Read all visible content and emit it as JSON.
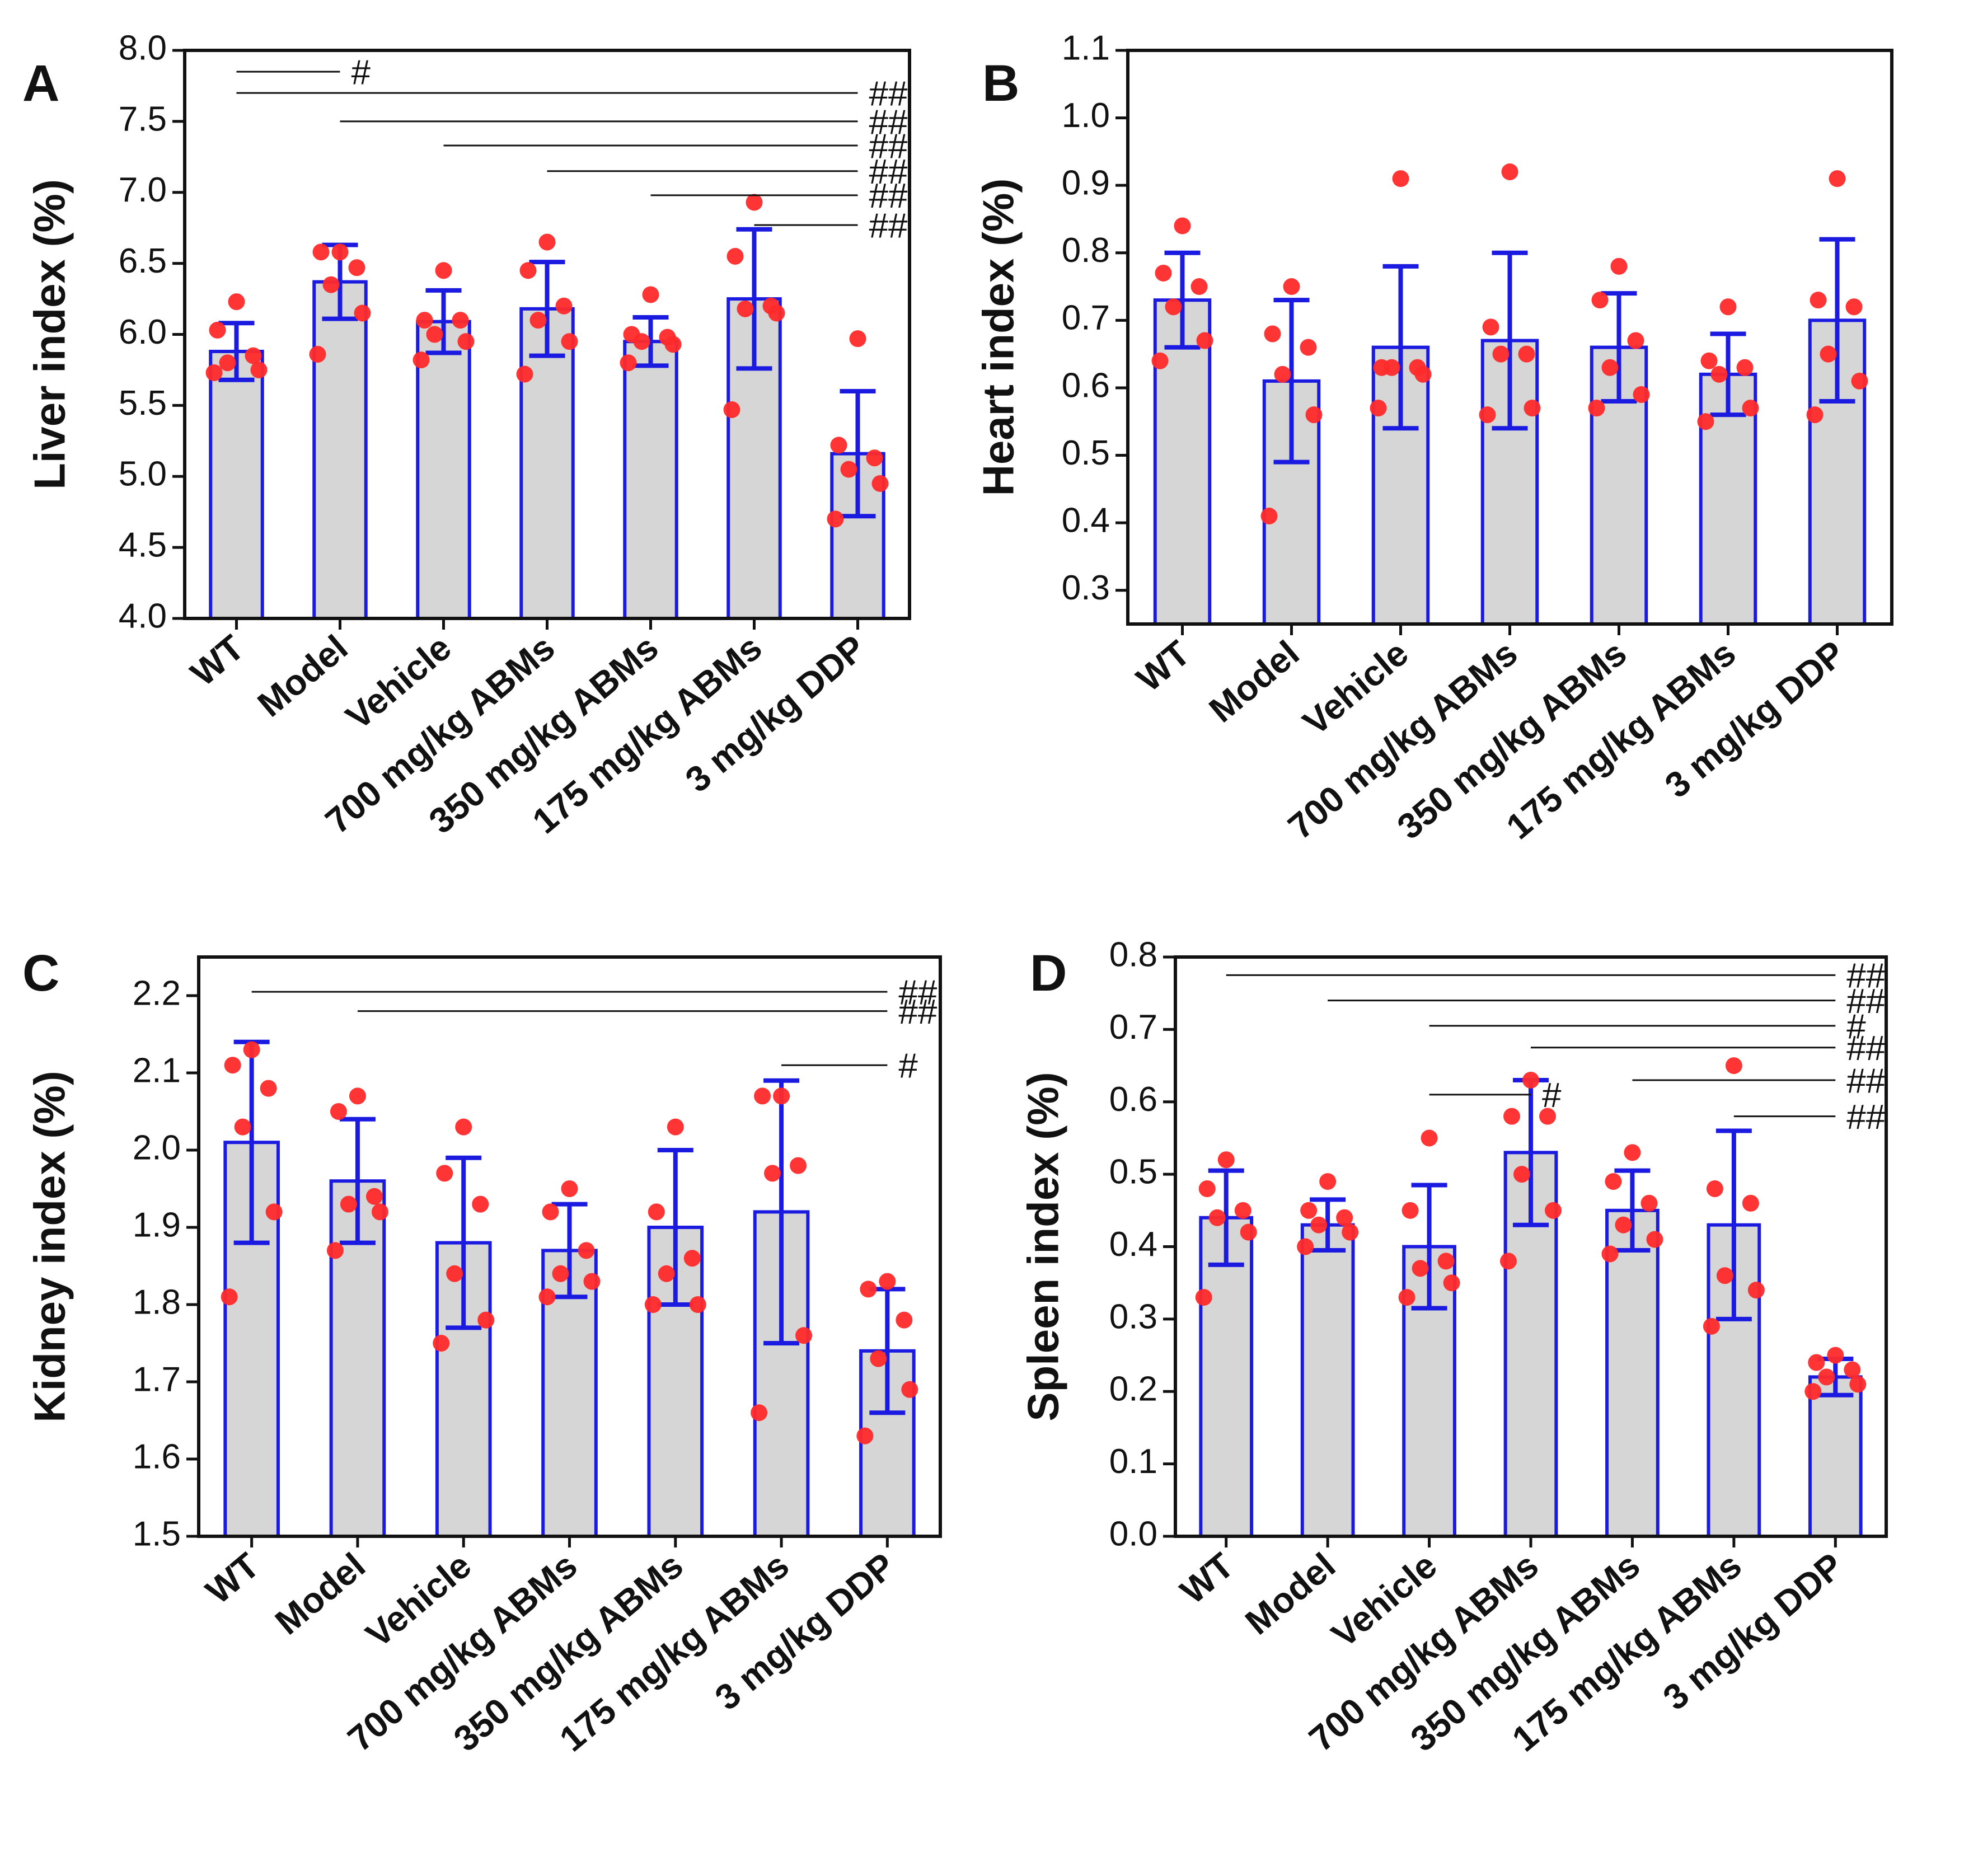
{
  "chart_data": [
    {
      "type": "bar",
      "panel": "A",
      "title": "",
      "xlabel": "",
      "ylabel": "Liver index (%)",
      "ylim": [
        4.0,
        8.0
      ],
      "yticks": [
        "4.0",
        "4.5",
        "5.0",
        "5.5",
        "6.0",
        "6.5",
        "7.0",
        "7.5",
        "8.0"
      ],
      "categories": [
        "WT",
        "Model",
        "Vehicle",
        "700 mg/kg ABMs",
        "350 mg/kg ABMs",
        "175 mg/kg ABMs",
        "3 mg/kg DDP"
      ],
      "values": [
        5.88,
        6.37,
        6.09,
        6.18,
        5.95,
        6.25,
        5.16
      ],
      "errors": [
        0.2,
        0.26,
        0.22,
        0.33,
        0.17,
        0.49,
        0.44
      ],
      "points": [
        [
          6.23,
          6.03,
          5.85,
          5.8,
          5.75,
          5.73
        ],
        [
          6.58,
          6.58,
          6.47,
          6.35,
          6.15,
          5.86
        ],
        [
          6.45,
          6.1,
          6.1,
          6.0,
          5.95,
          5.82
        ],
        [
          6.65,
          6.45,
          6.2,
          6.1,
          5.95,
          5.72
        ],
        [
          6.28,
          6.0,
          5.98,
          5.95,
          5.93,
          5.8
        ],
        [
          6.93,
          6.55,
          6.2,
          6.18,
          6.15,
          5.47
        ],
        [
          5.97,
          5.22,
          5.13,
          5.05,
          4.95,
          4.7
        ]
      ],
      "annotations": [
        {
          "text": "#",
          "from": 0,
          "to": 1,
          "y": 7.85
        },
        {
          "text": "##",
          "from": 0,
          "to": 6,
          "y": 7.7
        },
        {
          "text": "##",
          "from": 1,
          "to": 6,
          "y": 7.5
        },
        {
          "text": "##",
          "from": 2,
          "to": 6,
          "y": 7.33
        },
        {
          "text": "##",
          "from": 3,
          "to": 6,
          "y": 7.15
        },
        {
          "text": "##",
          "from": 4,
          "to": 6,
          "y": 6.98
        },
        {
          "text": "##",
          "from": 5,
          "to": 6,
          "y": 6.77
        }
      ]
    },
    {
      "type": "bar",
      "panel": "B",
      "title": "",
      "xlabel": "",
      "ylabel": "Heart index (%)",
      "ylim": [
        0.25,
        1.1
      ],
      "yticks": [
        "0.3",
        "0.4",
        "0.5",
        "0.6",
        "0.7",
        "0.8",
        "0.9",
        "1.0",
        "1.1"
      ],
      "categories": [
        "WT",
        "Model",
        "Vehicle",
        "700 mg/kg ABMs",
        "350 mg/kg ABMs",
        "175 mg/kg ABMs",
        "3 mg/kg DDP"
      ],
      "values": [
        0.73,
        0.61,
        0.66,
        0.67,
        0.66,
        0.62,
        0.7
      ],
      "errors": [
        0.07,
        0.12,
        0.12,
        0.13,
        0.08,
        0.06,
        0.12
      ],
      "points": [
        [
          0.84,
          0.77,
          0.75,
          0.72,
          0.67,
          0.64
        ],
        [
          0.75,
          0.68,
          0.66,
          0.62,
          0.56,
          0.41
        ],
        [
          0.91,
          0.63,
          0.63,
          0.63,
          0.62,
          0.57
        ],
        [
          0.92,
          0.69,
          0.65,
          0.65,
          0.57,
          0.56
        ],
        [
          0.78,
          0.73,
          0.67,
          0.63,
          0.59,
          0.57
        ],
        [
          0.72,
          0.64,
          0.63,
          0.62,
          0.57,
          0.55
        ],
        [
          0.91,
          0.73,
          0.72,
          0.65,
          0.61,
          0.56
        ]
      ],
      "annotations": []
    },
    {
      "type": "bar",
      "panel": "C",
      "title": "",
      "xlabel": "",
      "ylabel": "Kidney index (%)",
      "ylim": [
        1.5,
        2.25
      ],
      "yticks": [
        "1.5",
        "1.6",
        "1.7",
        "1.8",
        "1.9",
        "2.0",
        "2.1",
        "2.2"
      ],
      "categories": [
        "WT",
        "Model",
        "Vehicle",
        "700 mg/kg ABMs",
        "350 mg/kg ABMs",
        "175 mg/kg ABMs",
        "3 mg/kg DDP"
      ],
      "values": [
        2.01,
        1.96,
        1.88,
        1.87,
        1.9,
        1.92,
        1.74
      ],
      "errors": [
        0.13,
        0.08,
        0.11,
        0.06,
        0.1,
        0.17,
        0.08
      ],
      "points": [
        [
          2.13,
          2.11,
          2.08,
          2.03,
          1.92,
          1.81
        ],
        [
          2.07,
          2.05,
          1.94,
          1.93,
          1.92,
          1.87
        ],
        [
          2.03,
          1.97,
          1.93,
          1.84,
          1.78,
          1.75
        ],
        [
          1.95,
          1.92,
          1.87,
          1.84,
          1.83,
          1.81
        ],
        [
          2.03,
          1.92,
          1.86,
          1.84,
          1.8,
          1.8
        ],
        [
          2.07,
          2.07,
          1.98,
          1.97,
          1.76,
          1.66
        ],
        [
          1.83,
          1.82,
          1.78,
          1.73,
          1.69,
          1.63
        ]
      ],
      "annotations": [
        {
          "text": "##",
          "from": 0,
          "to": 6,
          "y": 2.205
        },
        {
          "text": "##",
          "from": 1,
          "to": 6,
          "y": 2.18
        },
        {
          "text": "#",
          "from": 5,
          "to": 6,
          "y": 2.11
        }
      ]
    },
    {
      "type": "bar",
      "panel": "D",
      "title": "",
      "xlabel": "",
      "ylabel": "Spleen index (%)",
      "ylim": [
        0.0,
        0.8
      ],
      "yticks": [
        "0.0",
        "0.1",
        "0.2",
        "0.3",
        "0.4",
        "0.5",
        "0.6",
        "0.7",
        "0.8"
      ],
      "categories": [
        "WT",
        "Model",
        "Vehicle",
        "700 mg/kg ABMs",
        "350 mg/kg ABMs",
        "175 mg/kg ABMs",
        "3 mg/kg DDP"
      ],
      "values": [
        0.44,
        0.43,
        0.4,
        0.53,
        0.45,
        0.43,
        0.22
      ],
      "errors": [
        0.065,
        0.035,
        0.085,
        0.1,
        0.055,
        0.13,
        0.025
      ],
      "points": [
        [
          0.52,
          0.48,
          0.45,
          0.44,
          0.42,
          0.33
        ],
        [
          0.49,
          0.45,
          0.44,
          0.43,
          0.42,
          0.4
        ],
        [
          0.55,
          0.45,
          0.38,
          0.37,
          0.35,
          0.33
        ],
        [
          0.63,
          0.58,
          0.58,
          0.5,
          0.45,
          0.38
        ],
        [
          0.53,
          0.49,
          0.46,
          0.43,
          0.41,
          0.39
        ],
        [
          0.65,
          0.48,
          0.46,
          0.36,
          0.34,
          0.29
        ],
        [
          0.25,
          0.24,
          0.23,
          0.22,
          0.21,
          0.2
        ]
      ],
      "annotations": [
        {
          "text": "##",
          "from": 0,
          "to": 6,
          "y": 0.775
        },
        {
          "text": "##",
          "from": 1,
          "to": 6,
          "y": 0.74
        },
        {
          "text": "#",
          "from": 2,
          "to": 6,
          "y": 0.705
        },
        {
          "text": "##",
          "from": 3,
          "to": 6,
          "y": 0.675
        },
        {
          "text": "##",
          "from": 4,
          "to": 6,
          "y": 0.63
        },
        {
          "text": "#",
          "from": 2,
          "to": 3,
          "y": 0.61
        },
        {
          "text": "##",
          "from": 5,
          "to": 6,
          "y": 0.58
        }
      ]
    }
  ]
}
